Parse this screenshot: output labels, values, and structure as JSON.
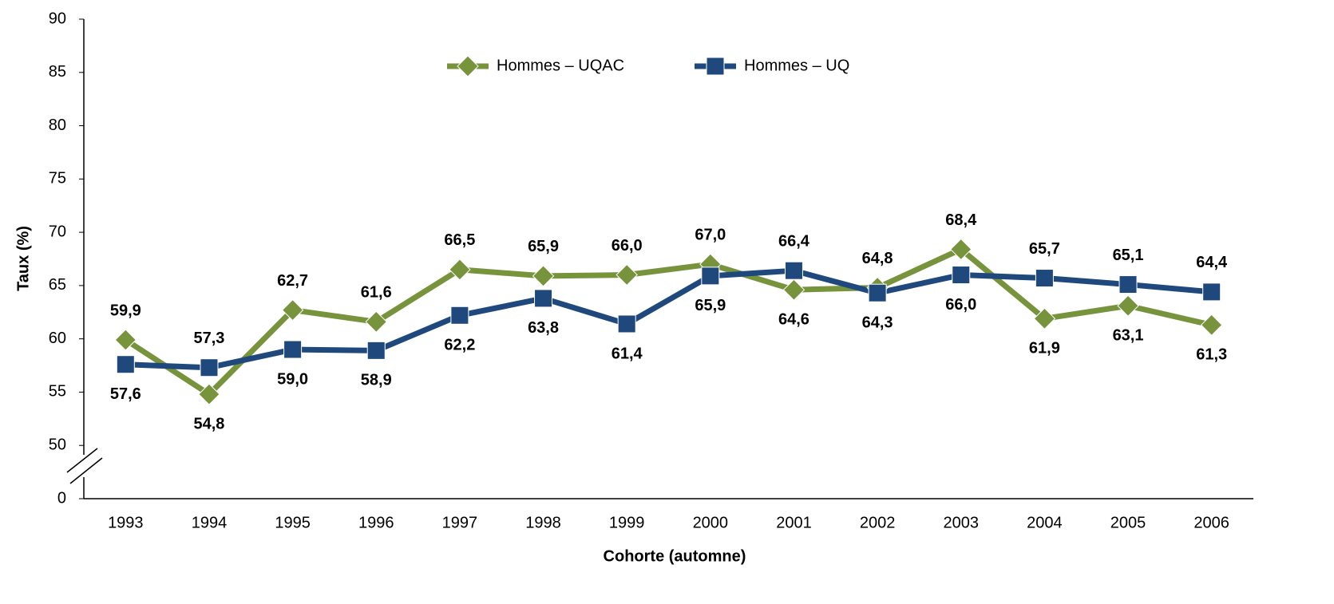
{
  "chart_data": {
    "type": "line",
    "x_label": "Cohorte (automne)",
    "y_label": "Taux (%)",
    "categories": [
      "1993",
      "1994",
      "1995",
      "1996",
      "1997",
      "1998",
      "1999",
      "2000",
      "2001",
      "2002",
      "2003",
      "2004",
      "2005",
      "2006"
    ],
    "series": [
      {
        "name": "Hommes – UQAC",
        "color": "#77933c",
        "label_color": "#4f6228",
        "marker": "diamond",
        "values": [
          59.9,
          54.8,
          62.7,
          61.6,
          66.5,
          65.9,
          66.0,
          67.0,
          64.6,
          64.8,
          68.4,
          61.9,
          63.1,
          61.3
        ],
        "value_labels": [
          "59,9",
          "54,8",
          "62,7",
          "61,6",
          "66,5",
          "65,9",
          "66,0",
          "67,0",
          "64,6",
          "64,8",
          "68,4",
          "61,9",
          "63,1",
          "61,3"
        ]
      },
      {
        "name": "Hommes – UQ",
        "color": "#1f497d",
        "label_color": "#2a5590",
        "marker": "square",
        "values": [
          57.6,
          57.3,
          59.0,
          58.9,
          62.2,
          63.8,
          61.4,
          65.9,
          66.4,
          64.3,
          66.0,
          65.7,
          65.1,
          64.4
        ],
        "value_labels": [
          "57,6",
          "57,3",
          "59,0",
          "58,9",
          "62,2",
          "63,8",
          "61,4",
          "65,9",
          "66,4",
          "64,3",
          "66,0",
          "65,7",
          "65,1",
          "64,4"
        ]
      }
    ],
    "ylim": [
      0,
      90
    ],
    "yticks": [
      0,
      50,
      55,
      60,
      65,
      70,
      75,
      80,
      85,
      90
    ],
    "y_axis_break": true,
    "legend": "top"
  }
}
